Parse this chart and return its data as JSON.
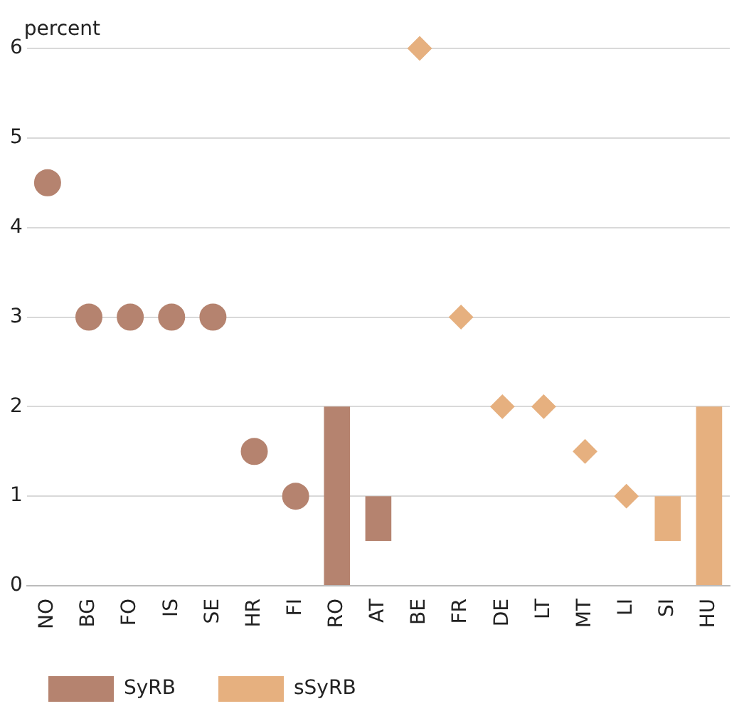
{
  "chart_data": {
    "type": "bar",
    "ylabel": "percent",
    "categories": [
      "NO",
      "BG",
      "FO",
      "IS",
      "SE",
      "HR",
      "FI",
      "RO",
      "AT",
      "BE",
      "FR",
      "DE",
      "LT",
      "MT",
      "LI",
      "SI",
      "HU"
    ],
    "series": [
      {
        "type": "scatter",
        "marker": "circle",
        "color": "#b5836f",
        "values": [
          4.5,
          3,
          3,
          3,
          3,
          1.5,
          1,
          null,
          null,
          null,
          null,
          null,
          null,
          null,
          null,
          null,
          null
        ]
      },
      {
        "type": "bar",
        "name": "SyRB",
        "color": "#b5836f",
        "values": [
          null,
          null,
          null,
          null,
          null,
          null,
          null,
          2,
          0.5,
          null,
          null,
          null,
          null,
          null,
          null,
          null,
          null
        ],
        "base": [
          null,
          null,
          null,
          null,
          null,
          null,
          null,
          0,
          0.5,
          null,
          null,
          null,
          null,
          null,
          null,
          null,
          null
        ]
      },
      {
        "type": "scatter",
        "marker": "diamond",
        "color": "#e6b07f",
        "values": [
          null,
          null,
          null,
          null,
          null,
          null,
          null,
          null,
          null,
          6,
          3,
          2,
          2,
          1.5,
          1,
          null,
          null
        ]
      },
      {
        "type": "bar",
        "name": "sSyRB",
        "color": "#e6b07f",
        "values": [
          null,
          null,
          null,
          null,
          null,
          null,
          null,
          null,
          null,
          null,
          null,
          null,
          null,
          null,
          null,
          0.5,
          2
        ],
        "base": [
          null,
          null,
          null,
          null,
          null,
          null,
          null,
          null,
          null,
          null,
          null,
          null,
          null,
          null,
          null,
          0.5,
          0
        ]
      }
    ],
    "ylim": [
      0,
      6
    ],
    "yticks": [
      0,
      1,
      2,
      3,
      4,
      5,
      6
    ],
    "grid": "y",
    "legend": "bottom left"
  }
}
